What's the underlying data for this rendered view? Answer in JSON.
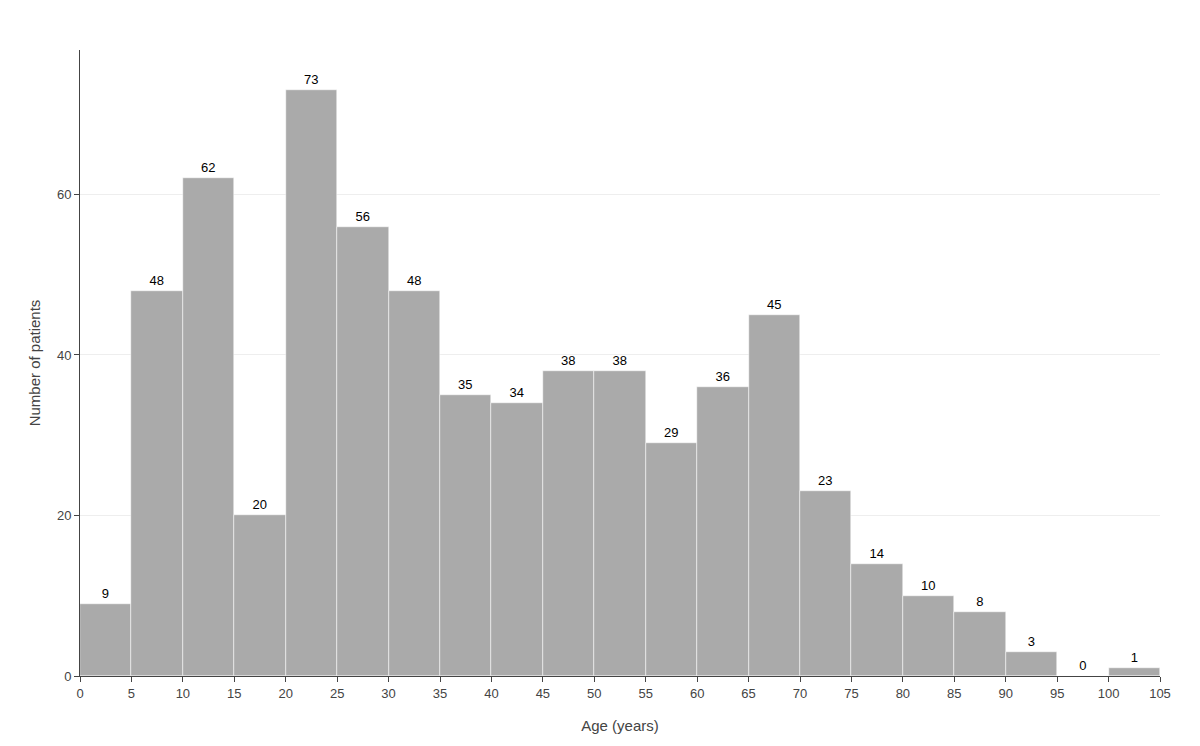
{
  "chart_data": {
    "type": "histogram",
    "bins": [
      0,
      5,
      10,
      15,
      20,
      25,
      30,
      35,
      40,
      45,
      50,
      55,
      60,
      65,
      70,
      75,
      80,
      85,
      90,
      95,
      100,
      105
    ],
    "values": [
      9,
      48,
      62,
      20,
      73,
      56,
      48,
      35,
      34,
      38,
      38,
      29,
      36,
      45,
      23,
      14,
      10,
      8,
      3,
      0,
      1
    ],
    "color": "#aaaaaa",
    "xlabel": "Age (years)",
    "ylabel": "Number of patients",
    "xlim": [
      0,
      105
    ],
    "xticks": [
      0,
      5,
      10,
      15,
      20,
      25,
      30,
      35,
      40,
      45,
      50,
      55,
      60,
      65,
      70,
      75,
      80,
      85,
      90,
      95,
      100,
      105
    ],
    "ylim": [
      0,
      78
    ],
    "yticks": [
      0,
      20,
      40,
      60
    ],
    "grid": "y",
    "data_labels": true
  }
}
